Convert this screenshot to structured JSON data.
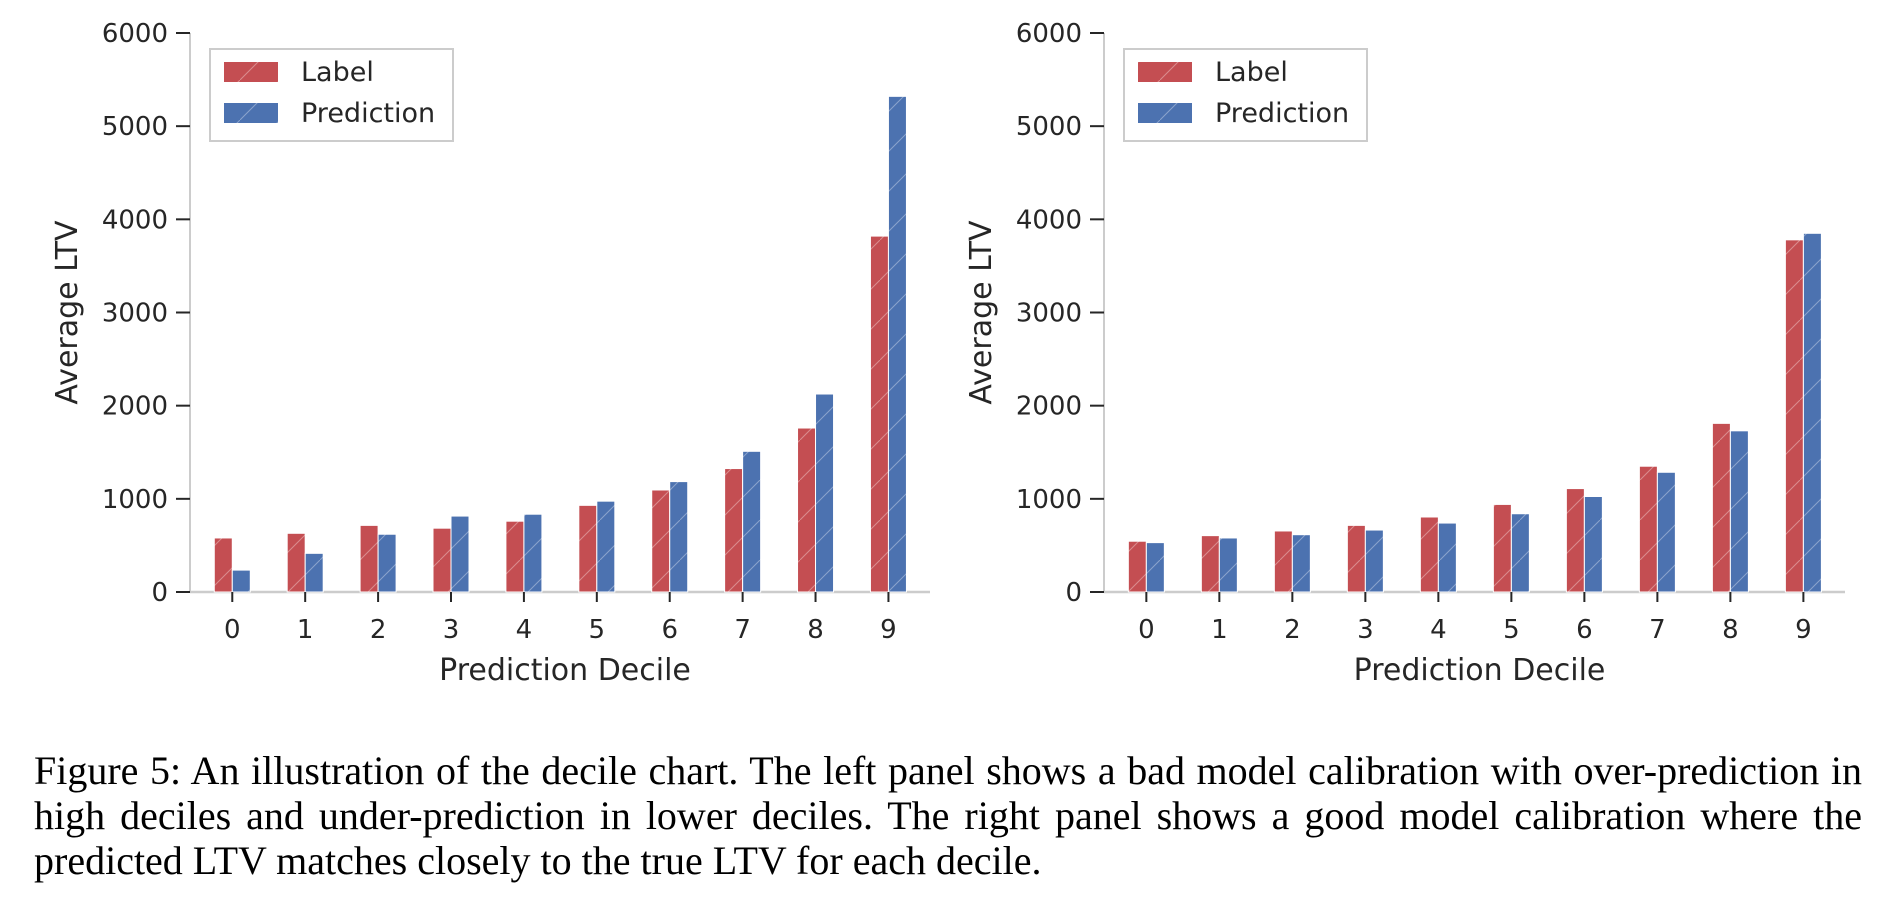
{
  "chart_data": [
    {
      "type": "bar",
      "categories": [
        "0",
        "1",
        "2",
        "3",
        "4",
        "5",
        "6",
        "7",
        "8",
        "9"
      ],
      "series": [
        {
          "name": "Label",
          "values": [
            580,
            630,
            715,
            685,
            760,
            930,
            1095,
            1325,
            1760,
            3820
          ],
          "color": "#c44e52"
        },
        {
          "name": "Prediction",
          "values": [
            235,
            415,
            620,
            815,
            835,
            975,
            1185,
            1510,
            2125,
            5320
          ],
          "color": "#4c72b0"
        }
      ],
      "xlabel": "Prediction Decile",
      "ylabel": "Average LTV",
      "ylim": [
        0,
        6000
      ],
      "yticks": [
        "0",
        "1000",
        "2000",
        "3000",
        "4000",
        "5000",
        "6000"
      ],
      "grid": false,
      "legend": "top-left"
    },
    {
      "type": "bar",
      "categories": [
        "0",
        "1",
        "2",
        "3",
        "4",
        "5",
        "6",
        "7",
        "8",
        "9"
      ],
      "series": [
        {
          "name": "Label",
          "values": [
            545,
            605,
            655,
            715,
            805,
            940,
            1110,
            1350,
            1810,
            3780
          ],
          "color": "#c44e52"
        },
        {
          "name": "Prediction",
          "values": [
            530,
            580,
            615,
            665,
            740,
            840,
            1025,
            1285,
            1730,
            3850
          ],
          "color": "#4c72b0"
        }
      ],
      "xlabel": "Prediction Decile",
      "ylabel": "Average LTV",
      "ylim": [
        0,
        6000
      ],
      "yticks": [
        "0",
        "1000",
        "2000",
        "3000",
        "4000",
        "5000",
        "6000"
      ],
      "grid": false,
      "legend": "top-left"
    }
  ],
  "caption": "Figure 5: An illustration of the decile chart. The left panel shows a bad model calibration with over-prediction in high deciles and under-prediction in lower deciles. The right panel shows a good model calibration where the predicted LTV matches closely to the true LTV for each decile."
}
